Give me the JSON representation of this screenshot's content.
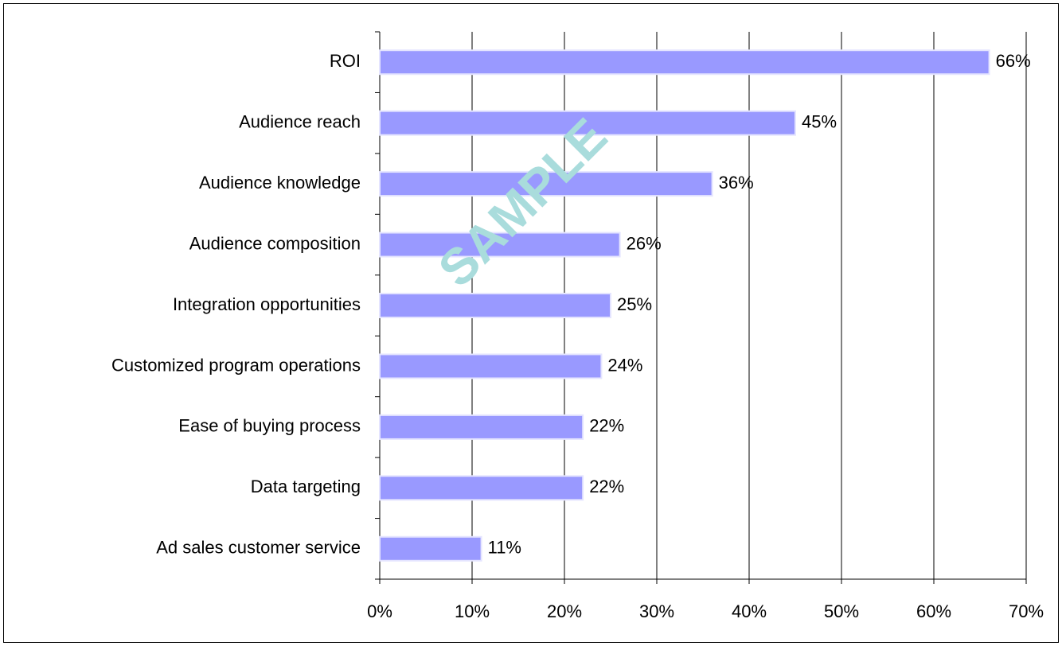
{
  "chart_data": {
    "type": "bar",
    "orientation": "horizontal",
    "categories": [
      "ROI",
      "Audience reach",
      "Audience knowledge",
      "Audience composition",
      "Integration opportunities",
      "Customized program operations",
      "Ease of buying process",
      "Data targeting",
      "Ad sales customer service"
    ],
    "values": [
      66,
      45,
      36,
      26,
      25,
      24,
      22,
      22,
      11
    ],
    "value_labels": [
      "66%",
      "45%",
      "36%",
      "26%",
      "25%",
      "24%",
      "22%",
      "22%",
      "11%"
    ],
    "color": "#9999ff",
    "xlim": [
      0,
      70
    ],
    "xticks": [
      {
        "value": 0,
        "label": "0%"
      },
      {
        "value": 10,
        "label": "10%"
      },
      {
        "value": 20,
        "label": "20%"
      },
      {
        "value": 30,
        "label": "30%"
      },
      {
        "value": 40,
        "label": "40%"
      },
      {
        "value": 50,
        "label": "50%"
      },
      {
        "value": 60,
        "label": "60%"
      },
      {
        "value": 70,
        "label": "70%"
      }
    ],
    "grid": true,
    "watermark": "SAMPLE"
  }
}
